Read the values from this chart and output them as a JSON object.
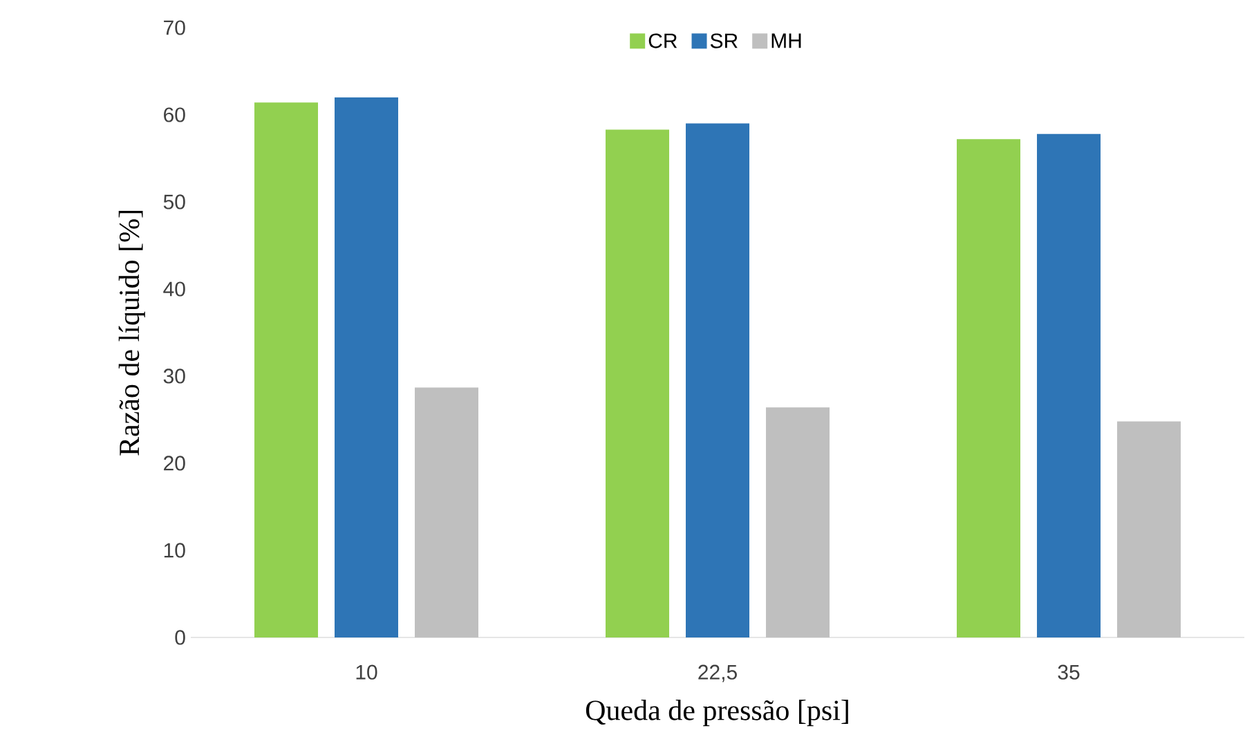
{
  "chart_data": {
    "type": "bar",
    "xlabel": "Queda de pressão [psi]",
    "ylabel": "Razão de líquido [%]",
    "categories": [
      "10",
      "22,5",
      "35"
    ],
    "series": [
      {
        "name": "CR",
        "color": "#92d050",
        "values": [
          61.4,
          58.3,
          57.2
        ]
      },
      {
        "name": "SR",
        "color": "#2e75b6",
        "values": [
          62.0,
          59.0,
          57.8
        ]
      },
      {
        "name": "MH",
        "color": "#bfbfbf",
        "values": [
          28.7,
          26.4,
          24.8
        ]
      }
    ],
    "ylim": [
      0,
      70
    ],
    "yticks": [
      0,
      10,
      20,
      30,
      40,
      50,
      60,
      70
    ],
    "grid": false,
    "legend": "top"
  }
}
